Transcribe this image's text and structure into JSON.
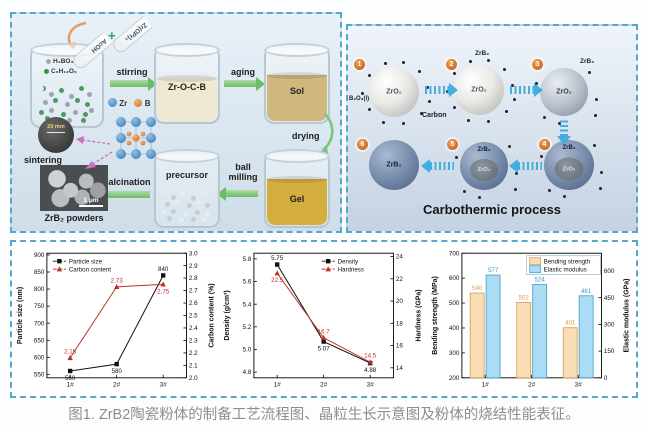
{
  "caption": "图1. ZrB2陶瓷粉体的制备工艺流程图、晶粒生长示意图及粉体的烧结性能表征。",
  "colors": {
    "panel_border": "#58a6cb",
    "arrow_green": "#69bd66",
    "arrow_blue": "#45aede",
    "series_black": "#111111",
    "series_red": "#c03028",
    "bar_tan_fill": "#f9ddb4",
    "bar_blue_fill": "#aadcf5"
  },
  "flow_panel": {
    "tube1_label": "AcOH",
    "tube2_label": "Zr(OPr)₄",
    "plus": "+",
    "beaker1_labels": [
      "H₃BO₃",
      "C₆H₁₂O₆"
    ],
    "arrow_stirring": "stirring",
    "beaker2_label": "Zr-O-C-B",
    "arrow_aging": "aging",
    "beaker3_label": "Sol",
    "arrow_drying": "drying",
    "beaker4_label": "Gel",
    "arrow_ball_milling": "ball milling",
    "beaker5_label": "precursor",
    "arrow_calcination": "calcination",
    "arrow_sintering": "sintering",
    "sem_scale": "1 μm",
    "sem_caption": "ZrB₂ powders",
    "disc_scale": "20 mm",
    "legend_zr": "Zr",
    "legend_b": "B"
  },
  "carbothermic_panel": {
    "title": "Carbothermic process",
    "label_b2o3": "B₂O₃(l)",
    "label_carbon": "Carbon",
    "steps": [
      {
        "num": "1",
        "core": "ZrO₂",
        "shell": ""
      },
      {
        "num": "2",
        "core": "ZrO₂",
        "shell": "ZrB₂"
      },
      {
        "num": "3",
        "core": "ZrO₂",
        "shell": "ZrB₂"
      },
      {
        "num": "4",
        "core": "ZrO₂",
        "shell": "ZrB₂"
      },
      {
        "num": "5",
        "core": "ZrO₂",
        "shell": "ZrB₂"
      },
      {
        "num": "6",
        "core": "ZrB₂",
        "shell": ""
      }
    ]
  },
  "chart_data": [
    {
      "type": "line",
      "categories": [
        "1#",
        "2#",
        "3#"
      ],
      "left_axis": {
        "label": "Particle size (nm)",
        "min": 540,
        "max": 905,
        "ticks": [
          "550",
          "600",
          "650",
          "700",
          "750",
          "800",
          "850",
          "900"
        ]
      },
      "right_axis": {
        "label": "Carbon content (%)",
        "min": 2.0,
        "max": 3.0,
        "ticks": [
          "2.0",
          "2.1",
          "2.2",
          "2.3",
          "2.4",
          "2.5",
          "2.6",
          "2.7",
          "2.8",
          "2.9",
          "3.0"
        ]
      },
      "legend_pos": "top-left",
      "legend_box": false,
      "series": [
        {
          "name": "Particle size",
          "axis": "left",
          "color": "#111111",
          "marker": "square",
          "values": [
            560,
            580,
            840
          ],
          "point_labels": [
            "560",
            "580",
            "840"
          ],
          "label_pos": [
            "below",
            "below",
            "above"
          ]
        },
        {
          "name": "Carbon content",
          "axis": "right",
          "color": "#c03028",
          "marker": "triangle",
          "values": [
            2.16,
            2.73,
            2.75
          ],
          "point_labels": [
            "2.16",
            "2.73",
            "2.75"
          ],
          "label_pos": [
            "above",
            "above",
            "below"
          ]
        }
      ]
    },
    {
      "type": "line",
      "categories": [
        "1#",
        "2#",
        "3#"
      ],
      "left_axis": {
        "label": "Density (g/cm³)",
        "min": 4.75,
        "max": 5.85,
        "ticks": [
          "4.8",
          "5.0",
          "5.2",
          "5.4",
          "5.6",
          "5.8"
        ]
      },
      "right_axis": {
        "label": "Hardness (GPa)",
        "min": 13.1,
        "max": 24.3,
        "ticks": [
          "14",
          "16",
          "18",
          "20",
          "22",
          "24"
        ]
      },
      "legend_pos": "top-right",
      "legend_box": false,
      "series": [
        {
          "name": "Density",
          "axis": "left",
          "color": "#111111",
          "marker": "square",
          "values": [
            5.75,
            5.07,
            4.88
          ],
          "point_labels": [
            "5.75",
            "5.07",
            "4.88"
          ],
          "label_pos": [
            "above",
            "below",
            "below"
          ]
        },
        {
          "name": "Hardness",
          "axis": "right",
          "color": "#c03028",
          "marker": "triangle",
          "values": [
            22.5,
            16.7,
            14.5
          ],
          "point_labels": [
            "22.5",
            "16.7",
            "14.5"
          ],
          "label_pos": [
            "below",
            "above",
            "above"
          ]
        }
      ]
    },
    {
      "type": "bar",
      "categories": [
        "1#",
        "2#",
        "3#"
      ],
      "left_axis": {
        "label": "Bending strength (MPa)",
        "min": 200,
        "max": 700,
        "ticks": [
          "200",
          "300",
          "400",
          "500",
          "600",
          "700"
        ]
      },
      "right_axis": {
        "label": "Elastic modulus (GPa)",
        "min": 0,
        "max": 700,
        "ticks": [
          "0",
          "150",
          "300",
          "450",
          "600"
        ]
      },
      "legend_pos": "top-right",
      "legend_box": true,
      "series": [
        {
          "name": "Bending strength",
          "axis": "left",
          "fill": "#f9ddb4",
          "stroke": "#d9a15c",
          "label_color": "#dc9a50",
          "values": [
            540,
            502,
            401
          ],
          "point_labels": [
            "540",
            "502",
            "401"
          ]
        },
        {
          "name": "Elastic modulus",
          "axis": "right",
          "fill": "#aadcf5",
          "stroke": "#54a3cc",
          "label_color": "#4596c8",
          "values": [
            577,
            524,
            461
          ],
          "point_labels": [
            "577",
            "524",
            "461"
          ]
        }
      ]
    }
  ]
}
